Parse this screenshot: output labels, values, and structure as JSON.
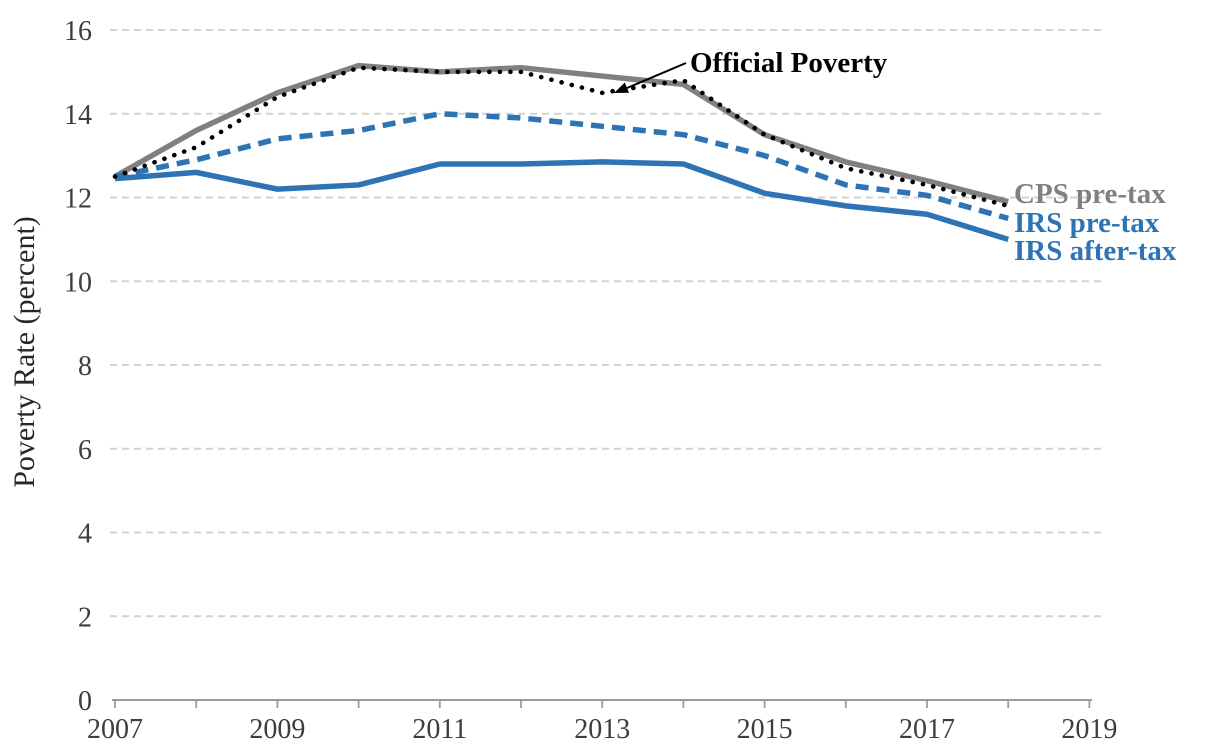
{
  "chart_data": {
    "type": "line",
    "title": "",
    "ylabel": "Poverty Rate (percent)",
    "xlabel": "",
    "ylim": [
      0,
      16
    ],
    "xlim": [
      2007,
      2019
    ],
    "yticks": [
      0,
      2,
      4,
      6,
      8,
      10,
      12,
      14,
      16
    ],
    "xticks_labeled": [
      2007,
      2009,
      2011,
      2013,
      2015,
      2017,
      2019
    ],
    "grid": "horizontal-dashed",
    "legend_position": "end-of-line-labels",
    "x": [
      2007,
      2008,
      2009,
      2010,
      2011,
      2012,
      2013,
      2014,
      2015,
      2016,
      2017,
      2018
    ],
    "series": [
      {
        "name": "Official Poverty",
        "style": "dotted",
        "color": "#000000",
        "values": [
          12.5,
          13.2,
          14.4,
          15.1,
          15.0,
          15.0,
          14.5,
          14.8,
          13.5,
          12.7,
          12.3,
          11.8
        ]
      },
      {
        "name": "CPS pre-tax",
        "style": "solid",
        "color": "#808080",
        "values": [
          12.5,
          13.6,
          14.5,
          15.15,
          15.0,
          15.1,
          14.9,
          14.7,
          13.5,
          12.85,
          12.4,
          11.9
        ]
      },
      {
        "name": "IRS pre-tax",
        "style": "dashed",
        "color": "#2E74B5",
        "values": [
          12.5,
          12.9,
          13.4,
          13.6,
          14.0,
          13.9,
          13.7,
          13.5,
          13.0,
          12.3,
          12.05,
          11.5
        ]
      },
      {
        "name": "IRS after-tax",
        "style": "solid",
        "color": "#2E74B5",
        "values": [
          12.45,
          12.6,
          12.2,
          12.3,
          12.8,
          12.8,
          12.85,
          12.8,
          12.1,
          11.8,
          11.6,
          11.0
        ]
      }
    ],
    "annotation": {
      "text": "Official Poverty",
      "target_series": "Official Poverty"
    },
    "colors": {
      "cps_gray": "#808080",
      "irs_blue": "#2E74B5",
      "official_black": "#000000",
      "gridline": "#d2d2d2",
      "axis": "#9b9b9b",
      "tick_text": "#3d3d3d"
    }
  }
}
